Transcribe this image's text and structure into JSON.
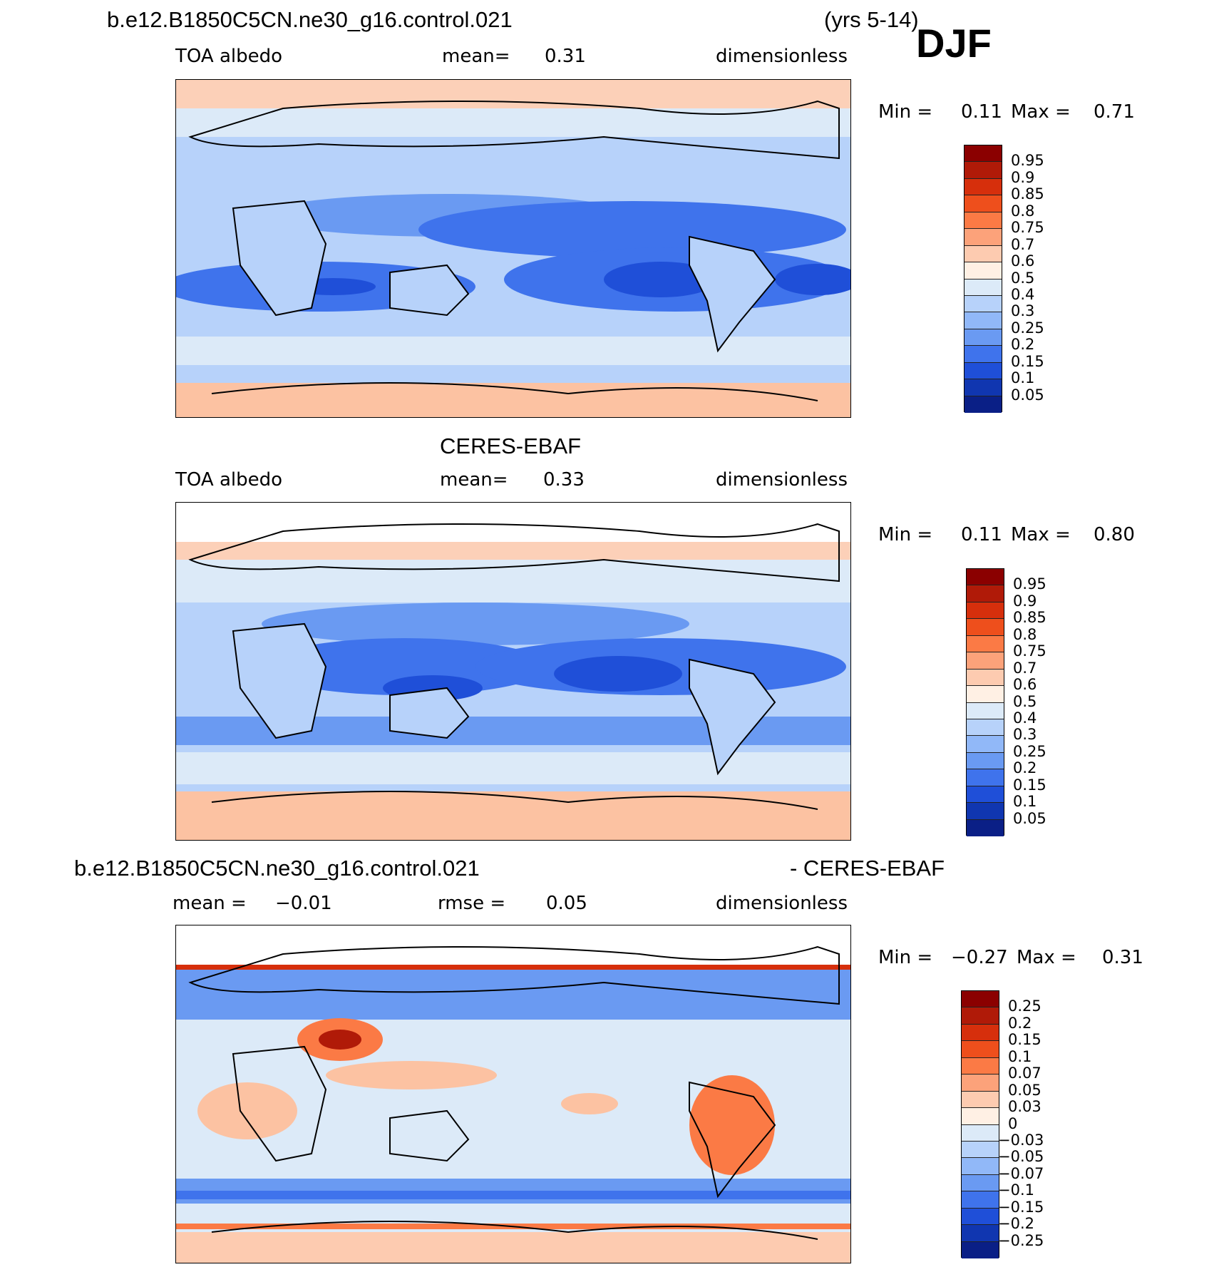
{
  "figure": {
    "case_name": "b.e12.B1850C5CN.ne30_g16.control.021",
    "years": "(yrs 5-14)",
    "season": "DJF"
  },
  "panels": [
    {
      "id": "model",
      "title": "",
      "variable": "TOA albedo",
      "stat_label": "mean=",
      "stat_value": "0.31",
      "units": "dimensionless",
      "min_label": "Min =",
      "min_value": "0.11",
      "max_label": "Max =",
      "max_value": "0.71",
      "color_levels": [
        "0.95",
        "0.9",
        "0.85",
        "0.8",
        "0.75",
        "0.7",
        "0.6",
        "0.5",
        "0.4",
        "0.3",
        "0.25",
        "0.2",
        "0.15",
        "0.1",
        "0.05"
      ],
      "color_swatches": [
        "#8b0000",
        "#b01a08",
        "#d62f0c",
        "#ee4f1c",
        "#fb7a45",
        "#fca27a",
        "#fdcbb0",
        "#fff0e4",
        "#dceaf8",
        "#b7d2fa",
        "#91b8f8",
        "#6a9af2",
        "#3f73ec",
        "#1f4fd8",
        "#1036b0",
        "#0a1f86"
      ]
    },
    {
      "id": "obs",
      "title": "CERES-EBAF",
      "variable": "TOA albedo",
      "stat_label": "mean=",
      "stat_value": "0.33",
      "units": "dimensionless",
      "min_label": "Min =",
      "min_value": "0.11",
      "max_label": "Max =",
      "max_value": "0.80",
      "color_levels": [
        "0.95",
        "0.9",
        "0.85",
        "0.8",
        "0.75",
        "0.7",
        "0.6",
        "0.5",
        "0.4",
        "0.3",
        "0.25",
        "0.2",
        "0.15",
        "0.1",
        "0.05"
      ],
      "color_swatches": [
        "#8b0000",
        "#b01a08",
        "#d62f0c",
        "#ee4f1c",
        "#fb7a45",
        "#fca27a",
        "#fdcbb0",
        "#fff0e4",
        "#dceaf8",
        "#b7d2fa",
        "#91b8f8",
        "#6a9af2",
        "#3f73ec",
        "#1f4fd8",
        "#1036b0",
        "#0a1f86"
      ]
    },
    {
      "id": "diff",
      "title_left": "b.e12.B1850C5CN.ne30_g16.control.021",
      "title_right": "- CERES-EBAF",
      "mean_label": "mean =",
      "mean_value": "−0.01",
      "rmse_label": "rmse =",
      "rmse_value": "0.05",
      "units": "dimensionless",
      "min_label": "Min =",
      "min_value": "−0.27",
      "max_label": "Max =",
      "max_value": "0.31",
      "color_levels": [
        "0.25",
        "0.2",
        "0.15",
        "0.1",
        "0.07",
        "0.05",
        "0.03",
        "0",
        "−0.03",
        "−0.05",
        "−0.07",
        "−0.1",
        "−0.15",
        "−0.2",
        "−0.25"
      ],
      "color_swatches": [
        "#8b0000",
        "#b01a08",
        "#d62f0c",
        "#ee4f1c",
        "#fb7a45",
        "#fca27a",
        "#fdcbb0",
        "#fff0e4",
        "#dceaf8",
        "#b7d2fa",
        "#91b8f8",
        "#6a9af2",
        "#3f73ec",
        "#1f4fd8",
        "#1036b0",
        "#0a1f86"
      ]
    }
  ]
}
